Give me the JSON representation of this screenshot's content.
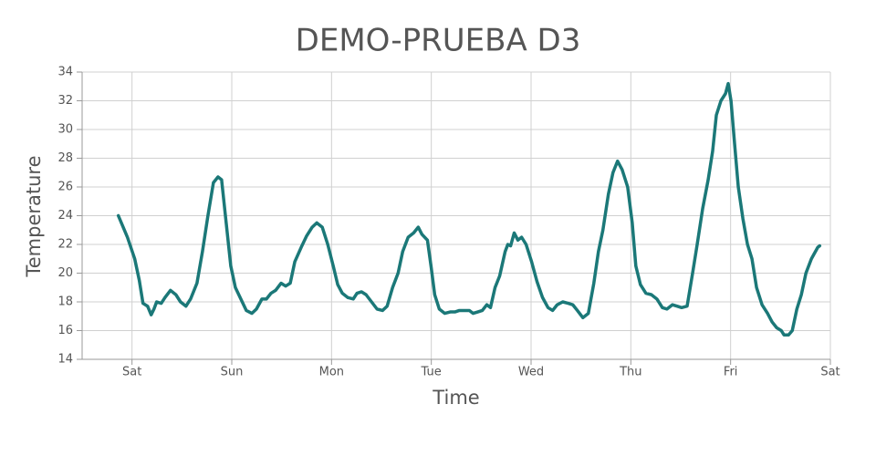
{
  "chart_data": {
    "type": "line",
    "title": "DEMO-PRUEBA D3",
    "x_label": "Time",
    "y_label": "Temperature",
    "x": [
      -0.137,
      -0.046,
      0.027,
      0.073,
      0.11,
      0.156,
      0.192,
      0.22,
      0.247,
      0.293,
      0.33,
      0.385,
      0.44,
      0.486,
      0.541,
      0.587,
      0.651,
      0.706,
      0.761,
      0.816,
      0.862,
      0.898,
      0.944,
      0.99,
      1.036,
      1.091,
      1.146,
      1.201,
      1.247,
      1.302,
      1.347,
      1.393,
      1.439,
      1.494,
      1.54,
      1.586,
      1.632,
      1.696,
      1.751,
      1.806,
      1.852,
      1.907,
      1.962,
      2.017,
      2.062,
      2.108,
      2.163,
      2.218,
      2.255,
      2.301,
      2.346,
      2.401,
      2.456,
      2.511,
      2.557,
      2.612,
      2.667,
      2.713,
      2.768,
      2.823,
      2.869,
      2.906,
      2.961,
      2.997,
      3.034,
      3.08,
      3.135,
      3.19,
      3.236,
      3.281,
      3.336,
      3.382,
      3.419,
      3.465,
      3.511,
      3.556,
      3.593,
      3.639,
      3.685,
      3.74,
      3.767,
      3.795,
      3.831,
      3.868,
      3.905,
      3.95,
      4.005,
      4.06,
      4.115,
      4.17,
      4.216,
      4.262,
      4.317,
      4.372,
      4.418,
      4.464,
      4.519,
      4.574,
      4.629,
      4.675,
      4.72,
      4.775,
      4.821,
      4.867,
      4.913,
      4.968,
      5.014,
      5.05,
      5.096,
      5.151,
      5.206,
      5.261,
      5.316,
      5.362,
      5.417,
      5.463,
      5.509,
      5.564,
      5.619,
      5.665,
      5.72,
      5.775,
      5.82,
      5.857,
      5.903,
      5.949,
      5.976,
      6.004,
      6.04,
      6.077,
      6.123,
      6.169,
      6.214,
      6.26,
      6.315,
      6.37,
      6.416,
      6.462,
      6.508,
      6.535,
      6.581,
      6.618,
      6.664,
      6.709,
      6.755,
      6.81,
      6.874,
      6.893
    ],
    "series": [
      {
        "color": "#1b7878",
        "values": [
          24.0,
          22.5,
          21,
          19.5,
          17.9,
          17.7,
          17.1,
          17.5,
          18.0,
          17.9,
          18.3,
          18.8,
          18.5,
          18.0,
          17.7,
          18.2,
          19.3,
          21.5,
          24.0,
          26.3,
          26.7,
          26.5,
          23.5,
          20.5,
          19.0,
          18.2,
          17.4,
          17.2,
          17.5,
          18.2,
          18.2,
          18.6,
          18.8,
          19.3,
          19.1,
          19.3,
          20.8,
          21.8,
          22.6,
          23.2,
          23.5,
          23.2,
          22.0,
          20.5,
          19.2,
          18.6,
          18.3,
          18.2,
          18.6,
          18.7,
          18.5,
          18.0,
          17.5,
          17.4,
          17.7,
          19.0,
          20.0,
          21.5,
          22.5,
          22.8,
          23.2,
          22.7,
          22.3,
          20.5,
          18.5,
          17.5,
          17.2,
          17.3,
          17.3,
          17.4,
          17.4,
          17.4,
          17.2,
          17.3,
          17.4,
          17.8,
          17.6,
          19.0,
          19.8,
          21.5,
          22.0,
          21.9,
          22.8,
          22.3,
          22.5,
          22.0,
          20.8,
          19.4,
          18.3,
          17.6,
          17.4,
          17.8,
          18.0,
          17.9,
          17.8,
          17.4,
          16.9,
          17.2,
          19.3,
          21.5,
          23.0,
          25.5,
          27.0,
          27.8,
          27.2,
          26.0,
          23.5,
          20.5,
          19.2,
          18.6,
          18.5,
          18.2,
          17.6,
          17.5,
          17.8,
          17.7,
          17.6,
          17.7,
          20.0,
          22.0,
          24.5,
          26.5,
          28.5,
          31.0,
          32.0,
          32.5,
          33.2,
          32.0,
          29.0,
          26.0,
          23.8,
          22.0,
          21.0,
          19.0,
          17.8,
          17.2,
          16.6,
          16.2,
          16.0,
          15.7,
          15.7,
          16.0,
          17.5,
          18.5,
          20.0,
          21.0,
          21.8,
          21.9
        ]
      }
    ],
    "xlim": [
      -0.5,
      7
    ],
    "xticks": [
      {
        "value": 0,
        "label": "Sat"
      },
      {
        "value": 1,
        "label": "Sun"
      },
      {
        "value": 2,
        "label": "Mon"
      },
      {
        "value": 3,
        "label": "Tue"
      },
      {
        "value": 4,
        "label": "Wed"
      },
      {
        "value": 5,
        "label": "Thu"
      },
      {
        "value": 6,
        "label": "Fri"
      },
      {
        "value": 7,
        "label": "Sat"
      }
    ],
    "ylim": [
      14,
      34
    ],
    "yticks": [
      14,
      16,
      18,
      20,
      22,
      24,
      26,
      28,
      30,
      32,
      34
    ],
    "grid": true
  }
}
